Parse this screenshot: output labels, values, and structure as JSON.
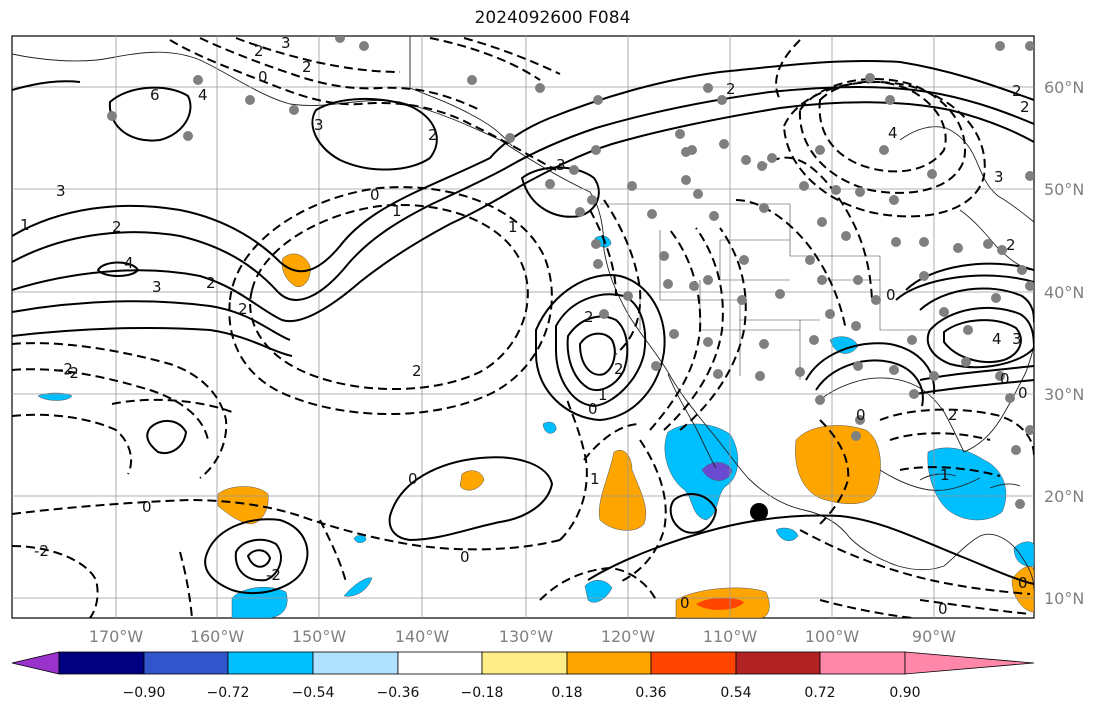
{
  "title": "2024092600 F084",
  "latitude_labels": [
    "60°N",
    "50°N",
    "40°N",
    "30°N",
    "20°N",
    "10°N"
  ],
  "longitude_labels": [
    "170°W",
    "160°W",
    "150°W",
    "140°W",
    "130°W",
    "120°W",
    "110°W",
    "100°W",
    "90°W"
  ],
  "colorbar": {
    "tick_labels": [
      "−0.90",
      "−0.72",
      "−0.54",
      "−0.36",
      "−0.18",
      "0.18",
      "0.36",
      "0.54",
      "0.72",
      "0.90"
    ],
    "colors": [
      "#9933cc",
      "#000080",
      "#3355cc",
      "#00bfff",
      "#b0e2ff",
      "#ffffff",
      "#ffee88",
      "#ffa500",
      "#ff4500",
      "#b22222",
      "#ff88aa"
    ]
  },
  "contour_labels": [
    "2",
    "3",
    "0",
    "2",
    "3",
    "6",
    "4",
    "3",
    "2",
    "1",
    "2",
    "4",
    "3",
    "2",
    "0",
    "1",
    "2",
    "-2",
    "2",
    "-2",
    "0",
    "-2",
    "0",
    "0",
    "3",
    "1",
    "2",
    "2",
    "1",
    "0",
    "1",
    "0",
    "2",
    "4",
    "3",
    "2",
    "2",
    "0",
    "0",
    "4",
    "3",
    "0",
    "0",
    "2",
    "1",
    "0",
    "2",
    "-2",
    "0"
  ],
  "marker": {
    "label": "",
    "color": "#000000"
  }
}
